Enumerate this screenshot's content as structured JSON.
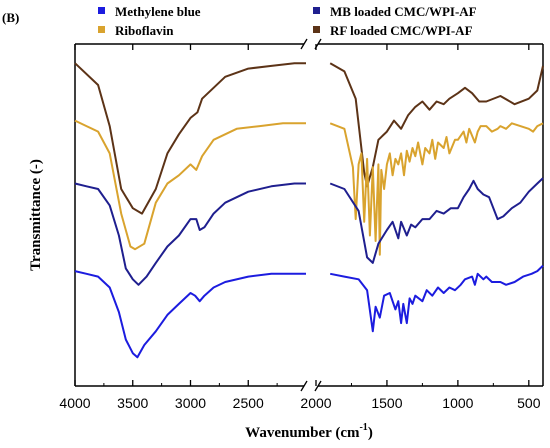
{
  "chart_data": {
    "type": "line",
    "panel_label": "(B)",
    "xlabel": "Wavenumber (cm",
    "xlabel_superscript": "-1",
    "xlabel_close": ")",
    "ylabel": "Transmittance (-)",
    "x_reversed": true,
    "x_segments": [
      {
        "xlim": [
          4000,
          2000
        ],
        "ticks": [
          "4000",
          "3500",
          "3000",
          "2500"
        ]
      },
      {
        "xlim": [
          2000,
          400
        ],
        "ticks": [
          "2000",
          "1500",
          "1000",
          "500"
        ]
      }
    ],
    "tick_values_left": [
      4000,
      3500,
      3000,
      2500
    ],
    "tick_values_right": [
      2000,
      1500,
      1000,
      500
    ],
    "axis_break": true,
    "legend_position": "top",
    "series": [
      {
        "name": "RF loaded CMC/WPI-AF",
        "color": "#5c3317",
        "points": [
          [
            4000,
            0.93
          ],
          [
            3800,
            0.85
          ],
          [
            3700,
            0.7
          ],
          [
            3600,
            0.47
          ],
          [
            3500,
            0.4
          ],
          [
            3420,
            0.38
          ],
          [
            3300,
            0.47
          ],
          [
            3200,
            0.6
          ],
          [
            3100,
            0.67
          ],
          [
            3000,
            0.73
          ],
          [
            2940,
            0.75
          ],
          [
            2900,
            0.8
          ],
          [
            2700,
            0.88
          ],
          [
            2500,
            0.91
          ],
          [
            2300,
            0.92
          ],
          [
            2100,
            0.93
          ],
          [
            2000,
            0.93
          ],
          [
            2000,
            0.93
          ],
          [
            1900,
            0.93
          ],
          [
            1800,
            0.9
          ],
          [
            1720,
            0.8
          ],
          [
            1660,
            0.53
          ],
          [
            1640,
            0.48
          ],
          [
            1600,
            0.55
          ],
          [
            1560,
            0.65
          ],
          [
            1500,
            0.68
          ],
          [
            1450,
            0.72
          ],
          [
            1400,
            0.69
          ],
          [
            1350,
            0.74
          ],
          [
            1300,
            0.77
          ],
          [
            1250,
            0.79
          ],
          [
            1200,
            0.76
          ],
          [
            1150,
            0.79
          ],
          [
            1100,
            0.78
          ],
          [
            1060,
            0.8
          ],
          [
            1000,
            0.82
          ],
          [
            950,
            0.84
          ],
          [
            900,
            0.82
          ],
          [
            850,
            0.79
          ],
          [
            800,
            0.79
          ],
          [
            700,
            0.81
          ],
          [
            600,
            0.78
          ],
          [
            500,
            0.8
          ],
          [
            440,
            0.83
          ],
          [
            400,
            0.92
          ]
        ]
      },
      {
        "name": "Riboflavin",
        "color": "#d9a32e",
        "points": [
          [
            4000,
            0.72
          ],
          [
            3900,
            0.7
          ],
          [
            3800,
            0.68
          ],
          [
            3700,
            0.6
          ],
          [
            3600,
            0.38
          ],
          [
            3520,
            0.26
          ],
          [
            3480,
            0.25
          ],
          [
            3400,
            0.27
          ],
          [
            3300,
            0.42
          ],
          [
            3200,
            0.49
          ],
          [
            3100,
            0.52
          ],
          [
            3000,
            0.56
          ],
          [
            2950,
            0.54
          ],
          [
            2900,
            0.59
          ],
          [
            2800,
            0.65
          ],
          [
            2600,
            0.69
          ],
          [
            2400,
            0.7
          ],
          [
            2200,
            0.71
          ],
          [
            2000,
            0.71
          ],
          [
            2000,
            0.71
          ],
          [
            1900,
            0.71
          ],
          [
            1800,
            0.69
          ],
          [
            1740,
            0.55
          ],
          [
            1720,
            0.36
          ],
          [
            1700,
            0.56
          ],
          [
            1680,
            0.6
          ],
          [
            1660,
            0.35
          ],
          [
            1640,
            0.58
          ],
          [
            1620,
            0.3
          ],
          [
            1600,
            0.55
          ],
          [
            1580,
            0.28
          ],
          [
            1560,
            0.56
          ],
          [
            1550,
            0.23
          ],
          [
            1540,
            0.54
          ],
          [
            1520,
            0.47
          ],
          [
            1500,
            0.56
          ],
          [
            1480,
            0.6
          ],
          [
            1460,
            0.52
          ],
          [
            1440,
            0.58
          ],
          [
            1420,
            0.56
          ],
          [
            1400,
            0.6
          ],
          [
            1380,
            0.52
          ],
          [
            1360,
            0.61
          ],
          [
            1340,
            0.57
          ],
          [
            1320,
            0.62
          ],
          [
            1300,
            0.59
          ],
          [
            1280,
            0.64
          ],
          [
            1250,
            0.56
          ],
          [
            1230,
            0.62
          ],
          [
            1200,
            0.6
          ],
          [
            1180,
            0.65
          ],
          [
            1160,
            0.58
          ],
          [
            1140,
            0.64
          ],
          [
            1100,
            0.62
          ],
          [
            1080,
            0.66
          ],
          [
            1060,
            0.6
          ],
          [
            1020,
            0.65
          ],
          [
            1000,
            0.65
          ],
          [
            960,
            0.68
          ],
          [
            940,
            0.64
          ],
          [
            920,
            0.69
          ],
          [
            880,
            0.64
          ],
          [
            860,
            0.68
          ],
          [
            840,
            0.7
          ],
          [
            800,
            0.7
          ],
          [
            760,
            0.68
          ],
          [
            720,
            0.69
          ],
          [
            700,
            0.7
          ],
          [
            660,
            0.69
          ],
          [
            620,
            0.71
          ],
          [
            560,
            0.7
          ],
          [
            500,
            0.69
          ],
          [
            470,
            0.68
          ],
          [
            440,
            0.7
          ],
          [
            400,
            0.71
          ]
        ]
      },
      {
        "name": "MB loaded CMC/WPI-AF",
        "color": "#1f1f8f",
        "points": [
          [
            4000,
            0.49
          ],
          [
            3900,
            0.48
          ],
          [
            3800,
            0.47
          ],
          [
            3700,
            0.41
          ],
          [
            3620,
            0.3
          ],
          [
            3560,
            0.18
          ],
          [
            3500,
            0.14
          ],
          [
            3450,
            0.12
          ],
          [
            3380,
            0.15
          ],
          [
            3300,
            0.2
          ],
          [
            3200,
            0.26
          ],
          [
            3100,
            0.3
          ],
          [
            3000,
            0.36
          ],
          [
            2950,
            0.36
          ],
          [
            2920,
            0.32
          ],
          [
            2880,
            0.33
          ],
          [
            2800,
            0.38
          ],
          [
            2700,
            0.42
          ],
          [
            2500,
            0.46
          ],
          [
            2300,
            0.48
          ],
          [
            2100,
            0.49
          ],
          [
            2000,
            0.49
          ],
          [
            2000,
            0.49
          ],
          [
            1900,
            0.49
          ],
          [
            1800,
            0.47
          ],
          [
            1700,
            0.39
          ],
          [
            1640,
            0.22
          ],
          [
            1600,
            0.2
          ],
          [
            1560,
            0.27
          ],
          [
            1500,
            0.32
          ],
          [
            1460,
            0.35
          ],
          [
            1420,
            0.29
          ],
          [
            1400,
            0.35
          ],
          [
            1360,
            0.3
          ],
          [
            1330,
            0.34
          ],
          [
            1300,
            0.33
          ],
          [
            1250,
            0.36
          ],
          [
            1200,
            0.36
          ],
          [
            1150,
            0.39
          ],
          [
            1100,
            0.38
          ],
          [
            1050,
            0.4
          ],
          [
            1000,
            0.4
          ],
          [
            960,
            0.44
          ],
          [
            920,
            0.47
          ],
          [
            890,
            0.5
          ],
          [
            860,
            0.47
          ],
          [
            820,
            0.45
          ],
          [
            780,
            0.44
          ],
          [
            720,
            0.36
          ],
          [
            680,
            0.37
          ],
          [
            620,
            0.4
          ],
          [
            560,
            0.42
          ],
          [
            500,
            0.46
          ],
          [
            440,
            0.49
          ],
          [
            400,
            0.51
          ]
        ]
      },
      {
        "name": "Methylene blue",
        "color": "#1c1cdf",
        "points": [
          [
            4000,
            0.17
          ],
          [
            3900,
            0.16
          ],
          [
            3800,
            0.15
          ],
          [
            3700,
            0.11
          ],
          [
            3620,
            0.02
          ],
          [
            3560,
            -0.08
          ],
          [
            3500,
            -0.13
          ],
          [
            3460,
            -0.145
          ],
          [
            3400,
            -0.1
          ],
          [
            3300,
            -0.05
          ],
          [
            3200,
            0.01
          ],
          [
            3100,
            0.05
          ],
          [
            3000,
            0.09
          ],
          [
            2960,
            0.08
          ],
          [
            2920,
            0.06
          ],
          [
            2880,
            0.08
          ],
          [
            2800,
            0.11
          ],
          [
            2700,
            0.13
          ],
          [
            2500,
            0.15
          ],
          [
            2300,
            0.16
          ],
          [
            2100,
            0.16
          ],
          [
            2000,
            0.16
          ],
          [
            2000,
            0.16
          ],
          [
            1900,
            0.16
          ],
          [
            1800,
            0.15
          ],
          [
            1700,
            0.14
          ],
          [
            1640,
            0.1
          ],
          [
            1600,
            -0.05
          ],
          [
            1580,
            0.04
          ],
          [
            1550,
            0.0
          ],
          [
            1520,
            0.08
          ],
          [
            1480,
            0.09
          ],
          [
            1440,
            0.03
          ],
          [
            1420,
            0.06
          ],
          [
            1400,
            -0.02
          ],
          [
            1385,
            0.05
          ],
          [
            1360,
            -0.02
          ],
          [
            1340,
            0.07
          ],
          [
            1320,
            0.05
          ],
          [
            1300,
            0.08
          ],
          [
            1250,
            0.06
          ],
          [
            1220,
            0.1
          ],
          [
            1180,
            0.08
          ],
          [
            1140,
            0.11
          ],
          [
            1100,
            0.09
          ],
          [
            1060,
            0.11
          ],
          [
            1020,
            0.1
          ],
          [
            980,
            0.12
          ],
          [
            950,
            0.14
          ],
          [
            900,
            0.15
          ],
          [
            880,
            0.12
          ],
          [
            860,
            0.16
          ],
          [
            820,
            0.14
          ],
          [
            800,
            0.15
          ],
          [
            760,
            0.13
          ],
          [
            700,
            0.13
          ],
          [
            660,
            0.12
          ],
          [
            600,
            0.13
          ],
          [
            540,
            0.15
          ],
          [
            480,
            0.16
          ],
          [
            440,
            0.17
          ],
          [
            400,
            0.19
          ]
        ]
      }
    ],
    "legend": [
      {
        "label": "Methylene blue",
        "color": "#1c1cdf"
      },
      {
        "label": "MB loaded CMC/WPI-AF",
        "color": "#1f1f8f"
      },
      {
        "label": "Riboflavin",
        "color": "#d9a32e"
      },
      {
        "label": "RF loaded CMC/WPI-AF",
        "color": "#5c3317"
      }
    ],
    "ylim": [
      -0.25,
      1.0
    ],
    "grid": false
  }
}
